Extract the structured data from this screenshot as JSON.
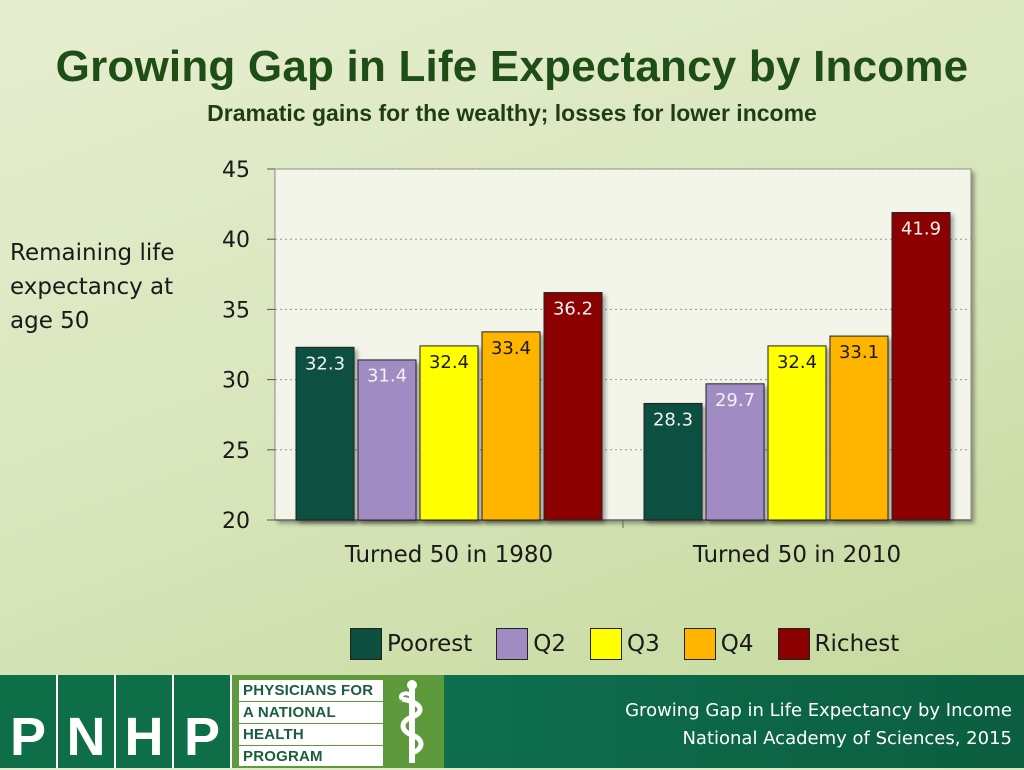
{
  "chart_data": {
    "type": "bar",
    "title": "Growing Gap in Life Expectancy by Income",
    "subtitle": "Dramatic gains for the wealthy; losses for lower income",
    "ylabel": "Remaining life expectancy at age 50",
    "xlabel": "",
    "ylim": [
      20,
      45
    ],
    "yticks": [
      20,
      25,
      30,
      35,
      40,
      45
    ],
    "grid": true,
    "legend_position": "bottom",
    "categories": [
      "Turned 50 in 1980",
      "Turned 50 in 2010"
    ],
    "series": [
      {
        "name": "Poorest",
        "color": "#0c4f3f",
        "values": [
          32.3,
          28.3
        ]
      },
      {
        "name": "Q2",
        "color": "#a08cc2",
        "values": [
          31.4,
          29.7
        ]
      },
      {
        "name": "Q3",
        "color": "#ffff00",
        "values": [
          32.4,
          32.4
        ]
      },
      {
        "name": "Q4",
        "color": "#ffb400",
        "values": [
          33.4,
          33.1
        ]
      },
      {
        "name": "Richest",
        "color": "#8b0000",
        "values": [
          36.2,
          41.9
        ]
      }
    ]
  },
  "footer": {
    "logo_letters": [
      "P",
      "N",
      "H",
      "P"
    ],
    "logo_words": [
      "PHYSICIANS FOR",
      "A NATIONAL",
      "HEALTH",
      "PROGRAM"
    ],
    "source_line1": "Growing Gap in Life Expectancy by Income",
    "source_line2": "National Academy of Sciences, 2015",
    "colors": {
      "footer_green": "#0e7150",
      "logo_green": "#5e9a3c"
    }
  }
}
